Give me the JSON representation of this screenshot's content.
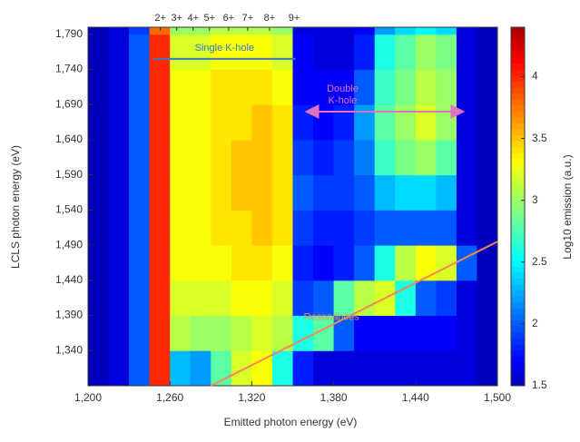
{
  "chart_data": {
    "type": "heatmap",
    "xlabel": "Emitted photon energy (eV)",
    "ylabel": "LCLS photon energy (eV)",
    "colorbar_label": "Log10 emission (a.u.)",
    "xlim": [
      1200,
      1500
    ],
    "ylim": [
      1290,
      1800
    ],
    "xticks": [
      {
        "value": 1200,
        "label": "1,200"
      },
      {
        "value": 1260,
        "label": "1,260"
      },
      {
        "value": 1320,
        "label": "1,320"
      },
      {
        "value": 1380,
        "label": "1,380"
      },
      {
        "value": 1440,
        "label": "1,440"
      },
      {
        "value": 1500,
        "label": "1,500"
      }
    ],
    "yticks": [
      {
        "value": 1340,
        "label": "1,340"
      },
      {
        "value": 1390,
        "label": "1,390"
      },
      {
        "value": 1440,
        "label": "1,440"
      },
      {
        "value": 1490,
        "label": "1,490"
      },
      {
        "value": 1540,
        "label": "1,540"
      },
      {
        "value": 1590,
        "label": "1,590"
      },
      {
        "value": 1640,
        "label": "1,640"
      },
      {
        "value": 1690,
        "label": "1,690"
      },
      {
        "value": 1740,
        "label": "1,740"
      },
      {
        "value": 1790,
        "label": "1,790"
      }
    ],
    "clim": [
      1.5,
      4.4
    ],
    "cticks": [
      1.5,
      2,
      2.5,
      3,
      3.5,
      4
    ],
    "colormap": "jet",
    "ion_labels": [
      {
        "value": 1253,
        "label": "2+"
      },
      {
        "value": 1265,
        "label": "3+"
      },
      {
        "value": 1277,
        "label": "4+"
      },
      {
        "value": 1289,
        "label": "5+"
      },
      {
        "value": 1303,
        "label": "6+"
      },
      {
        "value": 1317,
        "label": "7+"
      },
      {
        "value": 1333,
        "label": "8+"
      },
      {
        "value": 1351,
        "label": "9+"
      }
    ],
    "annotations": [
      {
        "text": [
          "Single K-hole"
        ],
        "x": [
          1248,
          1352
        ],
        "y": [
          1755,
          1755
        ],
        "color": "#3a78c8"
      },
      {
        "text": [
          "Double",
          "K-hole"
        ],
        "x": [
          1360,
          1475
        ],
        "y": [
          1680,
          1680
        ],
        "color": "#e070c0"
      },
      {
        "text": [
          "Resonances"
        ],
        "x": [
          1290,
          1500
        ],
        "y": [
          1290,
          1495
        ],
        "color": "#f08a50"
      }
    ],
    "xbins": [
      1200,
      1215,
      1230,
      1245,
      1260,
      1275,
      1290,
      1305,
      1320,
      1335,
      1350,
      1365,
      1380,
      1395,
      1410,
      1425,
      1440,
      1455,
      1470,
      1485,
      1500
    ],
    "ybins": [
      1290,
      1340,
      1390,
      1440,
      1490,
      1540,
      1590,
      1640,
      1690,
      1740,
      1790,
      1800
    ],
    "z": [
      [
        1.5,
        1.6,
        2.0,
        4.0,
        2.3,
        2.2,
        2.8,
        3.2,
        3.3,
        2.6,
        1.8,
        1.6,
        1.6,
        1.6,
        1.6,
        1.6,
        1.6,
        1.6,
        1.6,
        1.5
      ],
      [
        1.5,
        1.6,
        2.0,
        4.0,
        3.1,
        3.0,
        3.0,
        3.1,
        3.2,
        3.1,
        2.6,
        2.8,
        2.0,
        1.7,
        1.7,
        1.7,
        1.7,
        1.7,
        1.6,
        1.5
      ],
      [
        1.5,
        1.6,
        2.0,
        4.0,
        3.2,
        3.2,
        3.2,
        3.3,
        3.3,
        3.2,
        1.9,
        2.0,
        2.8,
        3.1,
        3.2,
        2.6,
        2.0,
        1.9,
        1.6,
        1.5
      ],
      [
        1.5,
        1.6,
        2.0,
        4.0,
        3.3,
        3.3,
        3.3,
        3.4,
        3.4,
        3.3,
        1.8,
        1.7,
        1.8,
        2.0,
        2.6,
        3.1,
        3.3,
        3.2,
        2.0,
        1.5
      ],
      [
        1.5,
        1.6,
        2.0,
        4.0,
        3.3,
        3.3,
        3.4,
        3.4,
        3.5,
        3.4,
        1.9,
        1.8,
        1.8,
        1.9,
        2.0,
        2.0,
        2.0,
        2.0,
        1.6,
        1.5
      ],
      [
        1.5,
        1.6,
        2.0,
        4.0,
        3.3,
        3.3,
        3.4,
        3.5,
        3.5,
        3.4,
        2.0,
        1.9,
        1.9,
        2.0,
        2.3,
        2.4,
        2.4,
        2.3,
        1.6,
        1.5
      ],
      [
        1.5,
        1.6,
        2.0,
        4.0,
        3.3,
        3.3,
        3.4,
        3.5,
        3.5,
        3.4,
        1.9,
        1.8,
        1.9,
        2.1,
        2.7,
        2.9,
        3.0,
        2.8,
        1.6,
        1.5
      ],
      [
        1.5,
        1.6,
        2.0,
        4.0,
        3.3,
        3.3,
        3.4,
        3.4,
        3.5,
        3.4,
        1.8,
        1.7,
        1.8,
        2.2,
        2.8,
        3.0,
        3.2,
        3.0,
        1.6,
        1.5
      ],
      [
        1.5,
        1.6,
        2.0,
        4.0,
        3.3,
        3.3,
        3.4,
        3.4,
        3.4,
        3.3,
        1.7,
        1.7,
        1.7,
        2.0,
        2.7,
        2.9,
        3.1,
        3.0,
        1.6,
        1.5
      ],
      [
        1.5,
        1.6,
        2.0,
        4.0,
        3.2,
        3.2,
        3.3,
        3.3,
        3.3,
        3.2,
        1.7,
        1.6,
        1.6,
        1.8,
        2.6,
        2.8,
        3.0,
        2.9,
        1.6,
        1.5
      ],
      [
        1.5,
        1.6,
        1.9,
        3.8,
        3.0,
        3.0,
        3.1,
        3.1,
        3.1,
        3.0,
        1.6,
        1.6,
        1.6,
        1.7,
        2.2,
        2.4,
        2.5,
        2.4,
        1.6,
        1.5
      ]
    ]
  }
}
